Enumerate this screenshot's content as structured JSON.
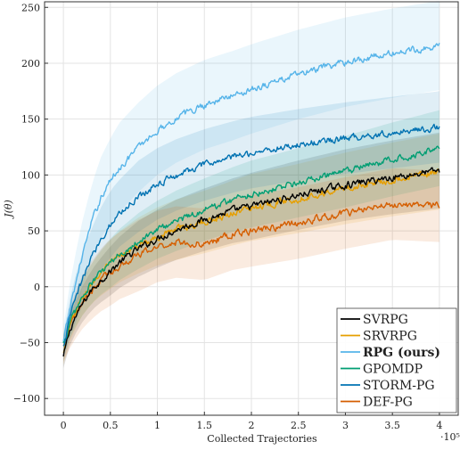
{
  "chart_data": {
    "type": "line",
    "xlabel": "Collected Trajectories",
    "x_multiplier": "·10⁵",
    "ylabel": "J(θ)",
    "xlim": [
      -0.2,
      4.2
    ],
    "ylim": [
      -115,
      255
    ],
    "x_ticks": [
      0,
      0.5,
      1,
      1.5,
      2,
      2.5,
      3,
      3.5,
      4
    ],
    "x_tick_labels": [
      "0",
      "0.5",
      "1",
      "1.5",
      "2",
      "2.5",
      "3",
      "3.5",
      "4"
    ],
    "y_ticks": [
      -100,
      -50,
      0,
      50,
      100,
      150,
      200,
      250
    ],
    "y_tick_labels": [
      "−100",
      "−50",
      "0",
      "50",
      "100",
      "150",
      "200",
      "250"
    ],
    "grid": true,
    "legend_position": "bottom-right",
    "x": [
      0,
      0.05,
      0.1,
      0.2,
      0.3,
      0.4,
      0.5,
      0.6,
      0.8,
      1.0,
      1.2,
      1.5,
      1.8,
      2.0,
      2.5,
      3.0,
      3.5,
      4.0
    ],
    "series": [
      {
        "name": "SVRPG",
        "color": "#000000",
        "values": [
          -63,
          -45,
          -32,
          -16,
          -3,
          6,
          14,
          22,
          34,
          43,
          51,
          60,
          68,
          72,
          82,
          91,
          98,
          104
        ],
        "band": [
          10,
          12,
          14,
          16,
          18,
          20,
          22,
          23,
          25,
          26,
          27,
          28,
          29,
          30,
          31,
          32,
          33,
          34
        ]
      },
      {
        "name": "SRVRPG",
        "color": "#E69F00",
        "values": [
          -60,
          -42,
          -28,
          -10,
          3,
          12,
          20,
          27,
          37,
          45,
          51,
          58,
          66,
          71,
          79,
          88,
          96,
          103
        ],
        "band": [
          10,
          12,
          14,
          16,
          18,
          20,
          22,
          23,
          25,
          26,
          27,
          28,
          29,
          30,
          31,
          32,
          33,
          34
        ]
      },
      {
        "name": "RPG (ours)",
        "bold": true,
        "color": "#56B4E9",
        "values": [
          -50,
          -28,
          -8,
          28,
          57,
          80,
          95,
          107,
          125,
          140,
          151,
          163,
          171,
          177,
          190,
          201,
          209,
          216
        ],
        "band": [
          14,
          20,
          26,
          30,
          34,
          36,
          38,
          40,
          40,
          40,
          40,
          40,
          40,
          40,
          40,
          40,
          40,
          40
        ]
      },
      {
        "name": "GPOMDP",
        "color": "#009E73",
        "values": [
          -52,
          -38,
          -26,
          -10,
          3,
          13,
          21,
          29,
          41,
          51,
          59,
          69,
          78,
          83,
          93,
          103,
          114,
          124
        ],
        "band": [
          10,
          12,
          14,
          16,
          18,
          20,
          22,
          23,
          25,
          26,
          27,
          28,
          29,
          30,
          31,
          32,
          33,
          34
        ]
      },
      {
        "name": "STORM-PG",
        "color": "#0072B2",
        "values": [
          -55,
          -35,
          -18,
          6,
          26,
          43,
          56,
          66,
          81,
          92,
          100,
          109,
          116,
          120,
          127,
          133,
          138,
          143
        ],
        "band": [
          12,
          16,
          20,
          24,
          26,
          28,
          30,
          30,
          32,
          32,
          32,
          32,
          32,
          32,
          32,
          32,
          32,
          32
        ]
      },
      {
        "name": "DEF-PG",
        "color": "#D55E00",
        "values": [
          -55,
          -42,
          -30,
          -14,
          -3,
          6,
          13,
          19,
          28,
          36,
          40,
          38,
          47,
          50,
          57,
          66,
          74,
          72
        ],
        "band": [
          12,
          16,
          20,
          24,
          26,
          28,
          30,
          30,
          32,
          32,
          32,
          32,
          32,
          32,
          32,
          32,
          32,
          32
        ]
      }
    ]
  }
}
